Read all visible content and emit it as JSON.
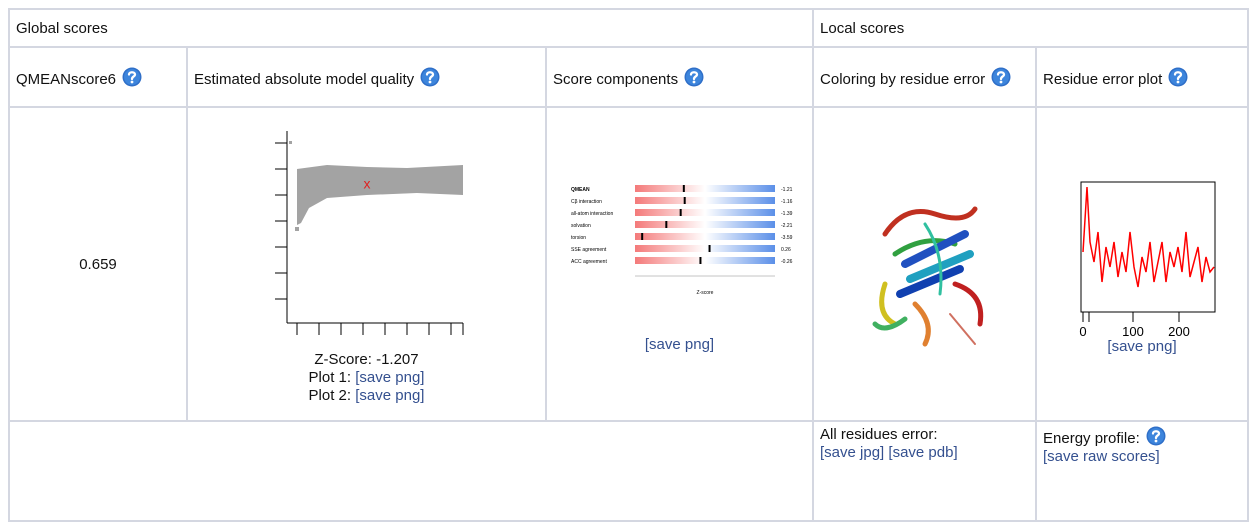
{
  "table": {
    "groups": [
      "Global scores",
      "Local scores"
    ],
    "headers": [
      "QMEANscore6",
      "Estimated absolute model quality",
      "Score components",
      "Coloring by residue error",
      "Residue error plot"
    ],
    "qmean_score": "0.659",
    "quality": {
      "marker": "x",
      "z_score": "Z-Score: -1.207",
      "plot1": "Plot 1:",
      "plot1_link": "[save png]",
      "plot2": "Plot 2:",
      "plot2_link": "[save png]"
    },
    "components": {
      "labels": [
        "QMEAN",
        "Cβ interaction",
        "all-atom interaction",
        "solvation",
        "torsion",
        "SSE agreement",
        "ACC agreement"
      ],
      "values": [
        -1.21,
        -1.16,
        -1.39,
        -2.21,
        -3.59,
        0.26,
        -0.26
      ],
      "axis_label": "Z-score",
      "link": "[save png]"
    },
    "residue_plot": {
      "ticks": [
        "0",
        "100",
        "200"
      ],
      "link": "[save png]"
    },
    "footer": {
      "all_residues": "All residues error:",
      "jpg_link": "[save jpg]",
      "pdb_link": "[save pdb]",
      "energy": "Energy profile:",
      "raw_link": "[save raw scores]"
    }
  }
}
